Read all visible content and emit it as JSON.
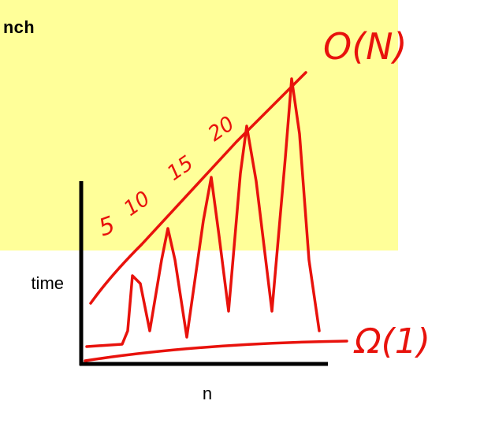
{
  "slide": {
    "partial_text": "nch",
    "y_axis_label": "time",
    "x_axis_label": "n"
  },
  "annotations": {
    "upper_bound": "O(N)",
    "lower_bound": "Ω(1)",
    "sizes": [
      "5",
      "10",
      "15",
      "20"
    ]
  }
}
